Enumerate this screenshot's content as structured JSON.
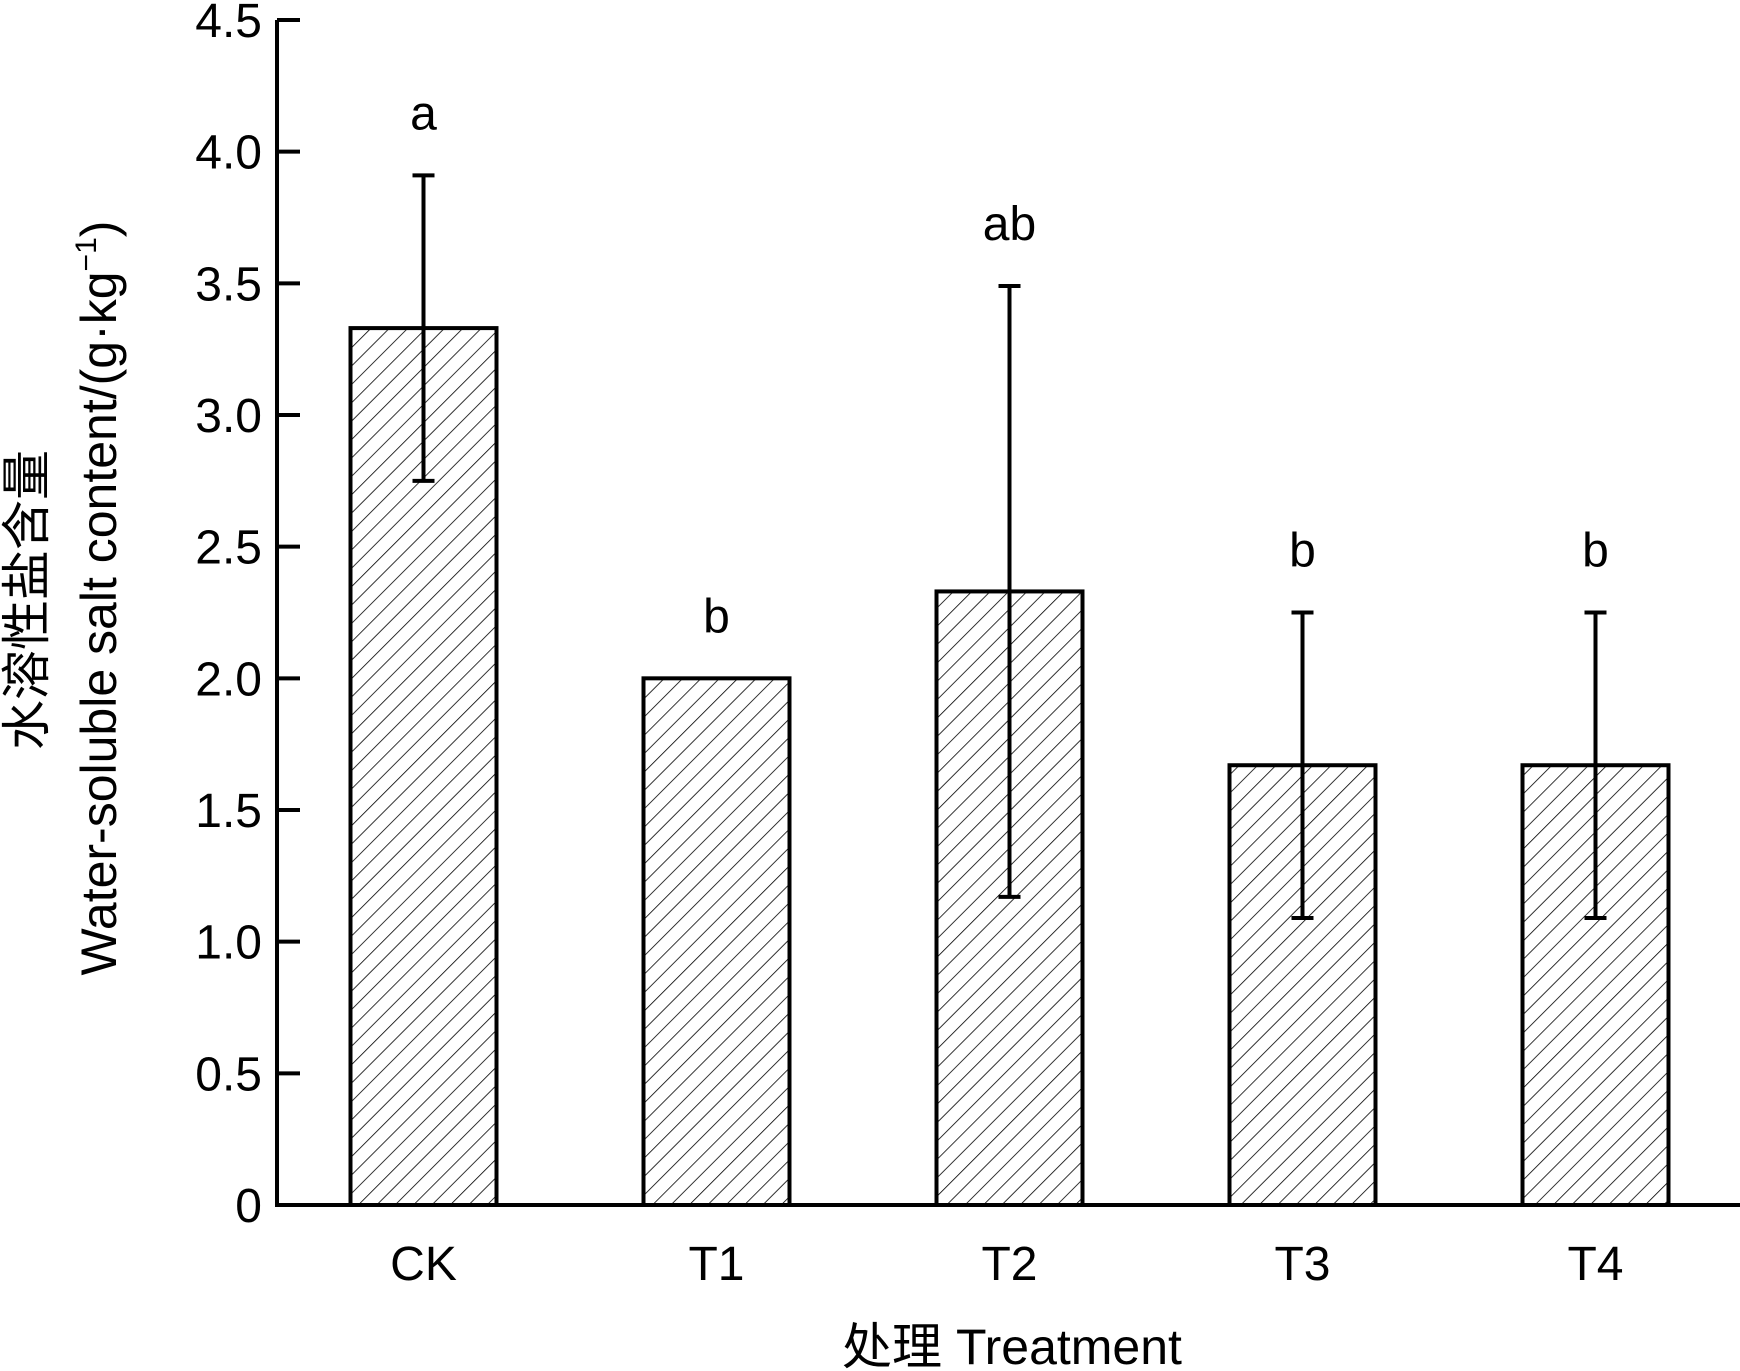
{
  "chart_data": {
    "type": "bar",
    "categories": [
      "CK",
      "T1",
      "T2",
      "T3",
      "T4"
    ],
    "values": [
      3.33,
      2.0,
      2.33,
      1.67,
      1.67
    ],
    "error_upper": [
      3.91,
      2.0,
      3.49,
      2.25,
      2.25
    ],
    "error_lower": [
      2.75,
      2.0,
      1.17,
      1.09,
      1.09
    ],
    "significance_letters": [
      "a",
      "b",
      "ab",
      "b",
      "b"
    ],
    "xlabel": "处理 Treatment",
    "ylabel_cn": "水溶性盐含量",
    "ylabel_en": "Water-soluble salt content/(g·kg",
    "ylabel_sup": "−1",
    "ylabel_close": ")",
    "ylim": [
      0,
      4.5
    ],
    "yticks": [
      "0",
      "0.5",
      "1.0",
      "1.5",
      "2.0",
      "2.5",
      "3.0",
      "3.5",
      "4.0",
      "4.5"
    ],
    "bar_fill": "hatched",
    "grid": false,
    "colors": {
      "stroke": "#000000",
      "background": "#ffffff"
    }
  }
}
